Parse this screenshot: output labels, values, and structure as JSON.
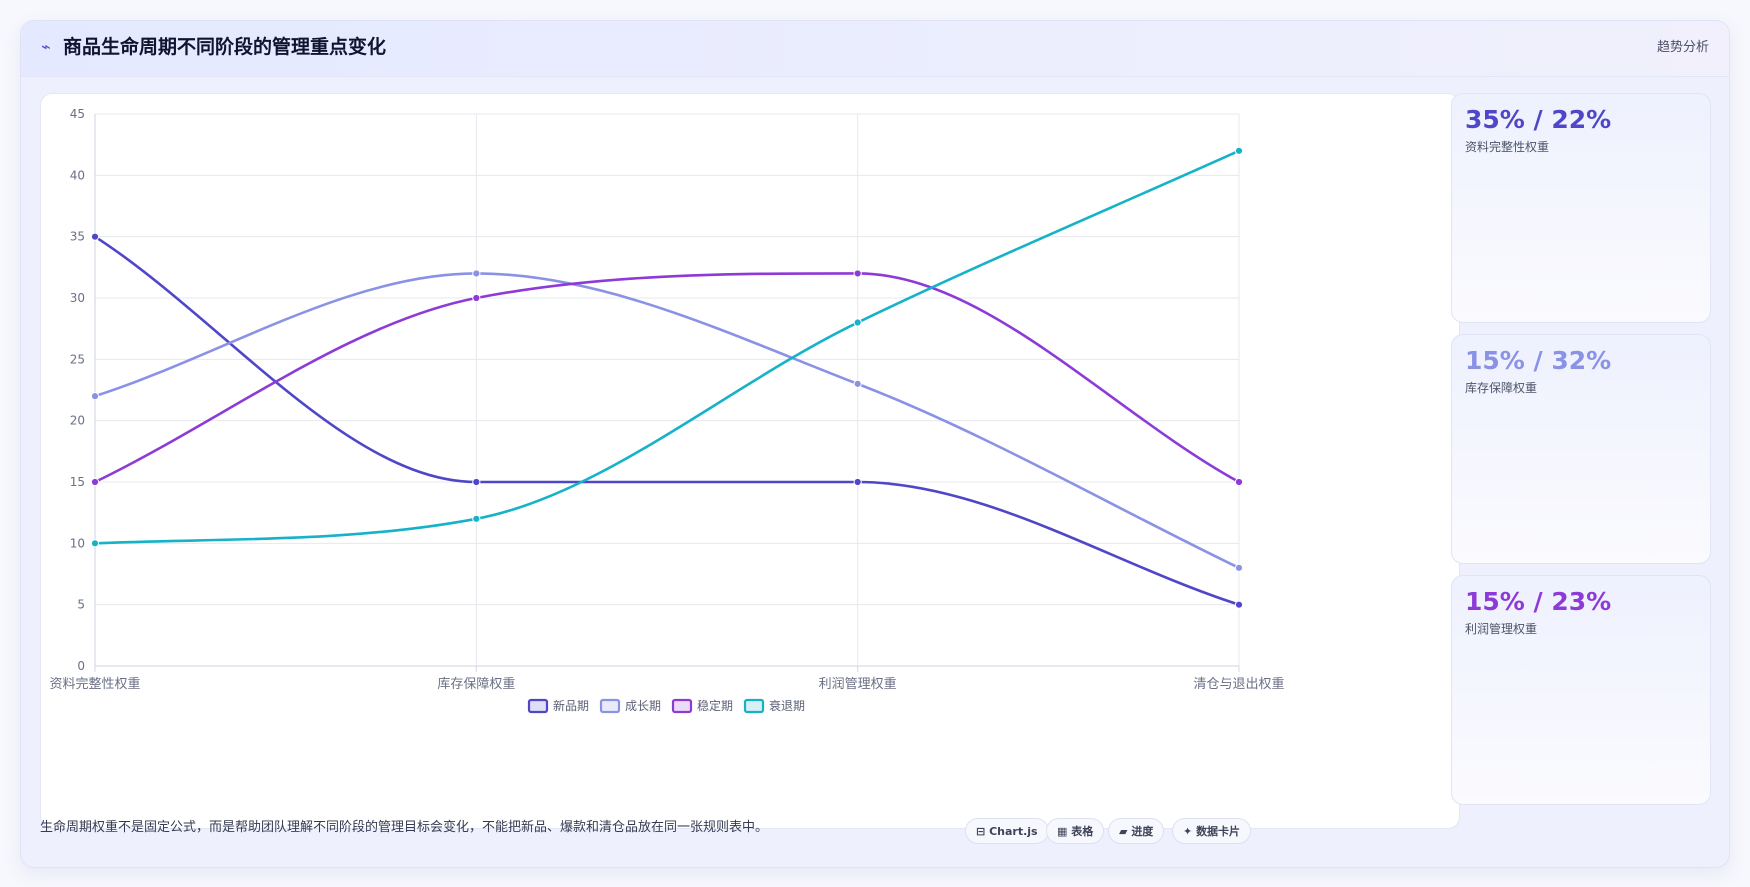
{
  "header": {
    "icon": "sparkline-icon",
    "title": "商品生命周期不同阶段的管理重点变化",
    "tag": "趋势分析"
  },
  "chart_data": {
    "type": "line",
    "title": "",
    "xlabel": "",
    "ylabel": "",
    "categories": [
      "资料完整性权重",
      "库存保障权重",
      "利润管理权重",
      "清仓与退出权重"
    ],
    "ylim": [
      0,
      45
    ],
    "yticks": [
      0,
      5,
      10,
      15,
      20,
      25,
      30,
      35,
      40,
      45
    ],
    "grid": true,
    "legend_position": "bottom",
    "smooth": true,
    "series": [
      {
        "name": "新品期",
        "color": "#4f46c8",
        "values": [
          35,
          15,
          15,
          5
        ]
      },
      {
        "name": "成长期",
        "color": "#8a92e6",
        "values": [
          22,
          32,
          23,
          8
        ]
      },
      {
        "name": "稳定期",
        "color": "#8e3ad6",
        "values": [
          15,
          30,
          32,
          15
        ]
      },
      {
        "name": "衰退期",
        "color": "#16b2c8",
        "values": [
          10,
          12,
          28,
          42
        ]
      }
    ]
  },
  "stats": [
    {
      "value": "35% / 22%",
      "label": "资料完整性权重",
      "color": "#4f46c8"
    },
    {
      "value": "15% / 32%",
      "label": "库存保障权重",
      "color": "#8a92e6"
    },
    {
      "value": "15% / 23%",
      "label": "利润管理权重",
      "color": "#8e3ad6"
    }
  ],
  "footer": {
    "note": "生命周期权重不是固定公式，而是帮助团队理解不同阶段的管理目标会变化，不能把新品、爆款和清仓品放在同一张规则表中。",
    "pills": [
      {
        "icon": "chart-icon",
        "glyph": "⊟",
        "label": "Chart.js"
      },
      {
        "icon": "table-icon",
        "glyph": "▦",
        "label": "表格"
      },
      {
        "icon": "progress-icon",
        "glyph": "▰",
        "label": "进度"
      },
      {
        "icon": "data-card-icon",
        "glyph": "✦",
        "label": "数据卡片"
      }
    ]
  }
}
